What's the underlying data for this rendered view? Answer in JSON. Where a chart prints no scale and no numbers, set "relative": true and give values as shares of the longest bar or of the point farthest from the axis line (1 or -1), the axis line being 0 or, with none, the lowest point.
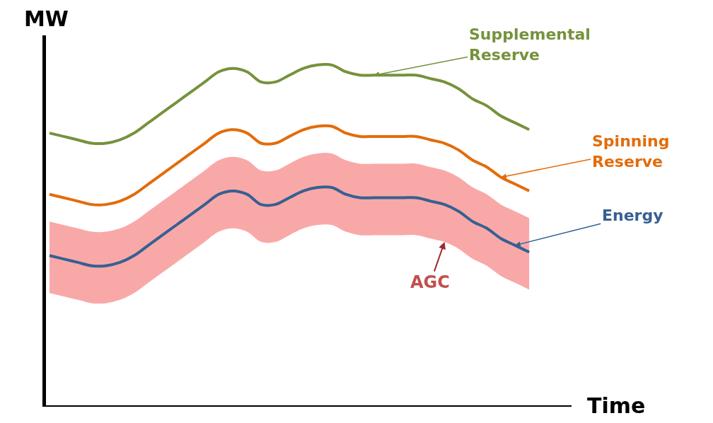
{
  "chart_data": {
    "type": "line",
    "relative": true,
    "xlabel": "Time",
    "ylabel": "MW",
    "legend": false,
    "marker": "none",
    "line_style": "solid",
    "categories": [
      null,
      null,
      null,
      null,
      null,
      null,
      null,
      null,
      null,
      null,
      null,
      null,
      null,
      null,
      null,
      null,
      null,
      null,
      null,
      null,
      null,
      null,
      null,
      null,
      null,
      null,
      null,
      null,
      null,
      null,
      null,
      null,
      null,
      null,
      null
    ],
    "series": [
      {
        "name": "Supplemental Reserve",
        "color": "#76923c",
        "values": [
          0.8,
          0.79,
          0.78,
          0.77,
          0.77,
          0.78,
          0.8,
          0.83,
          0.86,
          0.89,
          0.92,
          0.95,
          0.98,
          0.99,
          0.98,
          0.95,
          0.95,
          0.97,
          0.99,
          1.0,
          1.0,
          0.98,
          0.97,
          0.97,
          0.97,
          0.97,
          0.97,
          0.96,
          0.95,
          0.93,
          0.9,
          0.88,
          0.85,
          0.83,
          0.81
        ]
      },
      {
        "name": "Spinning Reserve",
        "color": "#e36c0a",
        "values": [
          0.62,
          0.61,
          0.6,
          0.59,
          0.59,
          0.6,
          0.62,
          0.65,
          0.68,
          0.71,
          0.74,
          0.77,
          0.8,
          0.81,
          0.8,
          0.77,
          0.77,
          0.79,
          0.81,
          0.82,
          0.82,
          0.8,
          0.79,
          0.79,
          0.79,
          0.79,
          0.79,
          0.78,
          0.77,
          0.75,
          0.72,
          0.7,
          0.67,
          0.65,
          0.63
        ]
      },
      {
        "name": "Energy",
        "color": "#366092",
        "values": [
          0.44,
          0.43,
          0.42,
          0.41,
          0.41,
          0.42,
          0.44,
          0.47,
          0.5,
          0.53,
          0.56,
          0.59,
          0.62,
          0.63,
          0.62,
          0.59,
          0.59,
          0.61,
          0.63,
          0.64,
          0.64,
          0.62,
          0.61,
          0.61,
          0.61,
          0.61,
          0.61,
          0.6,
          0.59,
          0.57,
          0.54,
          0.52,
          0.49,
          0.47,
          0.45
        ],
        "upper": [
          0.54,
          0.53,
          0.52,
          0.51,
          0.51,
          0.52,
          0.54,
          0.57,
          0.6,
          0.63,
          0.66,
          0.69,
          0.72,
          0.73,
          0.72,
          0.69,
          0.69,
          0.71,
          0.73,
          0.74,
          0.74,
          0.72,
          0.71,
          0.71,
          0.71,
          0.71,
          0.71,
          0.7,
          0.69,
          0.67,
          0.64,
          0.62,
          0.59,
          0.57,
          0.55
        ],
        "lower": [
          0.33,
          0.32,
          0.31,
          0.3,
          0.3,
          0.31,
          0.33,
          0.36,
          0.39,
          0.42,
          0.45,
          0.48,
          0.51,
          0.52,
          0.51,
          0.48,
          0.48,
          0.5,
          0.52,
          0.53,
          0.53,
          0.51,
          0.5,
          0.5,
          0.5,
          0.5,
          0.5,
          0.49,
          0.48,
          0.46,
          0.43,
          0.41,
          0.38,
          0.36,
          0.34
        ]
      }
    ],
    "annotations": [
      "AGC"
    ]
  }
}
